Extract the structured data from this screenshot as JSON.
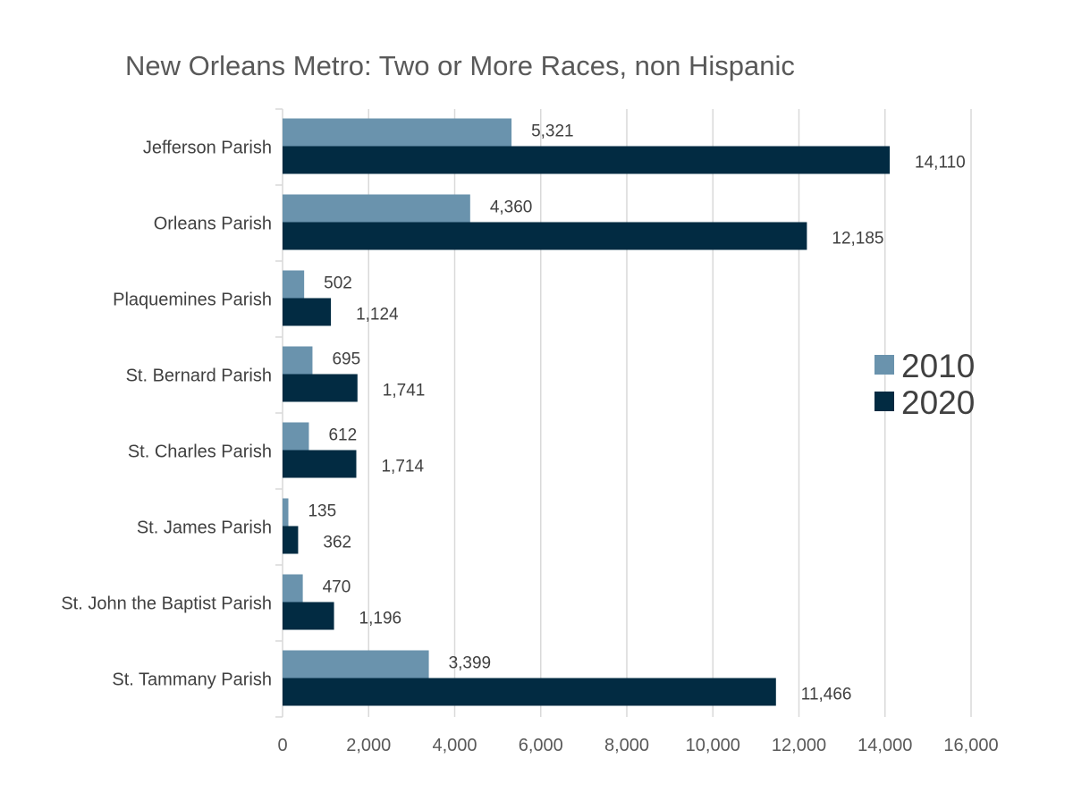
{
  "chart_data": {
    "type": "bar",
    "orientation": "horizontal",
    "title": "New Orleans Metro: Two or More Races, non Hispanic",
    "xlabel": "",
    "ylabel": "",
    "categories": [
      "Jefferson Parish",
      "Orleans Parish",
      "Plaquemines Parish",
      "St. Bernard Parish",
      "St. Charles Parish",
      "St. James Parish",
      "St. John the Baptist Parish",
      "St. Tammany Parish"
    ],
    "series": [
      {
        "name": "2010",
        "color": "#6a93ad",
        "values": [
          5321,
          4360,
          502,
          695,
          612,
          135,
          470,
          3399
        ],
        "labels": [
          "5,321",
          "4,360",
          "502",
          "695",
          "612",
          "135",
          "470",
          "3,399"
        ]
      },
      {
        "name": "2020",
        "color": "#022b42",
        "values": [
          14110,
          12185,
          1124,
          1741,
          1714,
          362,
          1196,
          11466
        ],
        "labels": [
          "14,110",
          "12,185",
          "1,124",
          "1,741",
          "1,714",
          "362",
          "1,196",
          "11,466"
        ]
      }
    ],
    "xlim": [
      0,
      16000
    ],
    "xticks": [
      0,
      2000,
      4000,
      6000,
      8000,
      10000,
      12000,
      14000,
      16000
    ],
    "xtick_labels": [
      "0",
      "2,000",
      "4,000",
      "6,000",
      "8,000",
      "10,000",
      "12,000",
      "14,000",
      "16,000"
    ],
    "grid": "vertical",
    "grid_color": "#d9d9d9",
    "legend_position": "right"
  }
}
